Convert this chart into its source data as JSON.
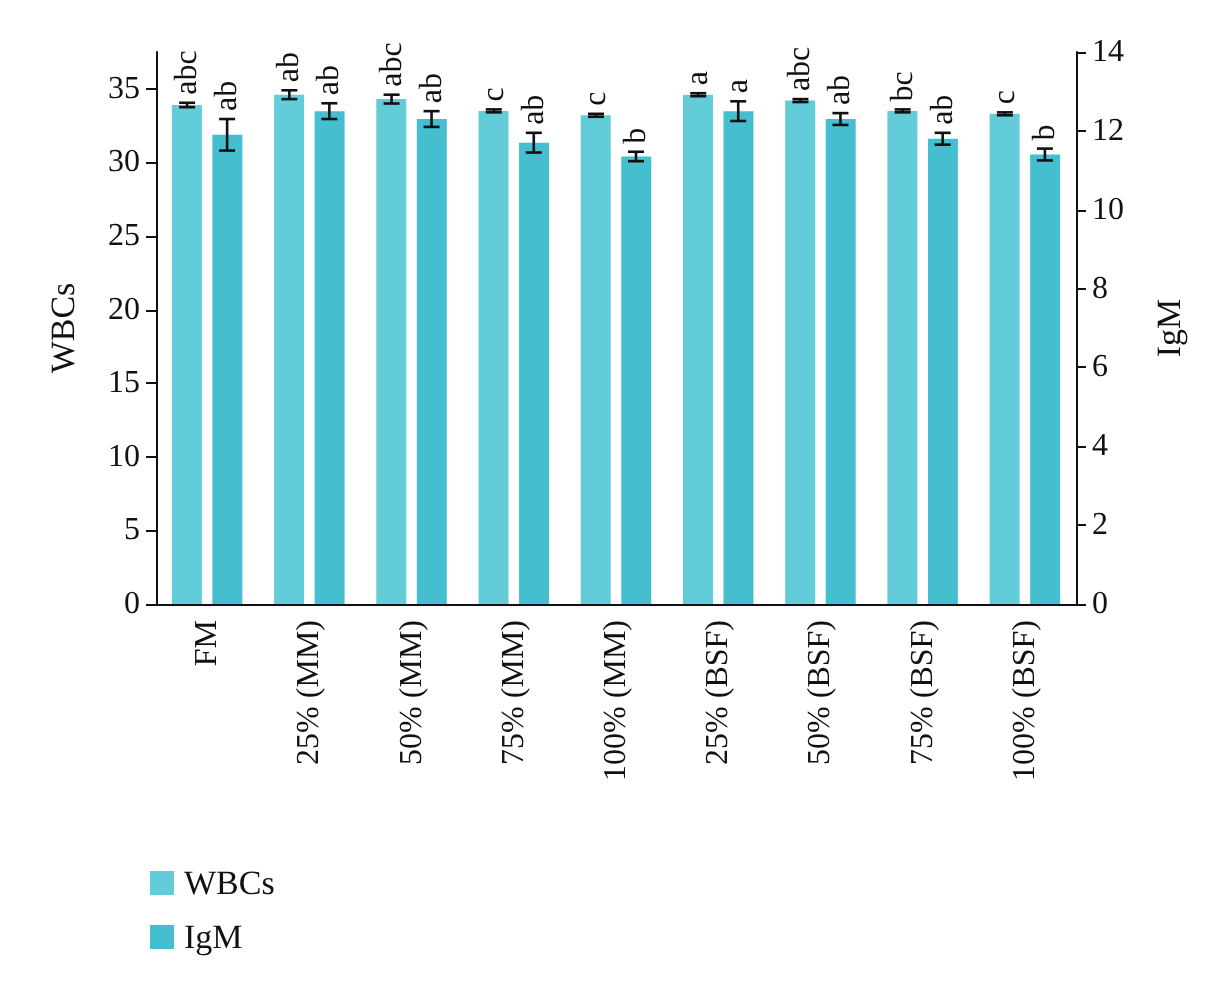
{
  "chart_data": {
    "type": "bar",
    "ylabel": "WBCs",
    "y2label": "IgM",
    "categories": [
      "FM",
      "25% (MM)",
      "50% (MM)",
      "75% (MM)",
      "100% (MM)",
      "25% (BSF)",
      "50% (BSF)",
      "75% (BSF)",
      "100% (BSF)"
    ],
    "series": [
      {
        "name": "WBCs",
        "color": "#62ccd8",
        "values": [
          33.9,
          34.6,
          34.3,
          33.5,
          33.2,
          34.6,
          34.2,
          33.5,
          33.3
        ],
        "errors": [
          0.15,
          0.3,
          0.3,
          0.1,
          0.1,
          0.1,
          0.1,
          0.1,
          0.1
        ],
        "value_labels": [
          "abc",
          "ab",
          "abc",
          "c",
          "c",
          "a",
          "abc",
          "bc",
          "c"
        ]
      },
      {
        "name": "IgM",
        "color": "#45bfcf",
        "axis": "y2",
        "values": [
          11.9,
          12.5,
          12.3,
          11.7,
          11.35,
          12.5,
          12.3,
          11.8,
          11.4
        ],
        "errors": [
          0.4,
          0.2,
          0.2,
          0.25,
          0.12,
          0.25,
          0.15,
          0.15,
          0.15
        ],
        "value_labels": [
          "ab",
          "ab",
          "ab",
          "ab",
          "b",
          "a",
          "ab",
          "ab",
          "b"
        ]
      }
    ],
    "ylim": [
      0,
      37.5
    ],
    "yticks": [
      0,
      5,
      10,
      15,
      20,
      25,
      30,
      35
    ],
    "y2lim": [
      0,
      14
    ],
    "y2ticks": [
      0,
      2,
      4,
      6,
      8,
      10,
      12,
      14
    ],
    "grid": false,
    "legend": "bottom left"
  }
}
